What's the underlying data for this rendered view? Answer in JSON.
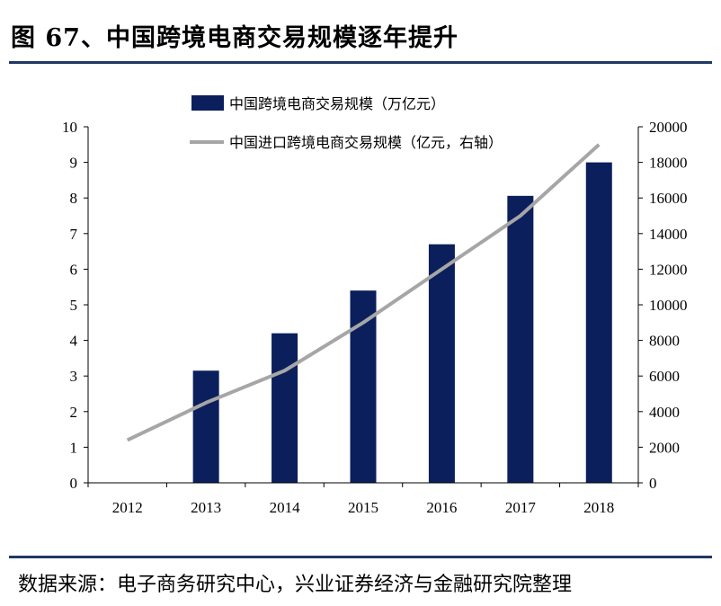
{
  "figure": {
    "title": "图 67、中国跨境电商交易规模逐年提升",
    "source": "数据来源：电子商务研究中心，兴业证券经济与金融研究院整理"
  },
  "colors": {
    "bar": "#0b1f5c",
    "line": "#a6a6a6",
    "rule": "#1f3864",
    "axis": "#000000"
  },
  "chart_data": {
    "type": "bar",
    "categories": [
      "2012",
      "2013",
      "2014",
      "2015",
      "2016",
      "2017",
      "2018"
    ],
    "series": [
      {
        "name": "中国跨境电商交易规模（万亿元）",
        "type": "bar",
        "axis": "left",
        "values": [
          null,
          3.15,
          4.2,
          5.4,
          6.7,
          8.06,
          9.0
        ]
      },
      {
        "name": "中国进口跨境电商交易规模（亿元，右轴）",
        "type": "line",
        "axis": "right",
        "values": [
          2400,
          4500,
          6300,
          9000,
          12000,
          15000,
          19000
        ]
      }
    ],
    "ylim": [
      0,
      10
    ],
    "yticks": [
      "0",
      "1",
      "2",
      "3",
      "4",
      "5",
      "6",
      "7",
      "8",
      "9",
      "10"
    ],
    "y2lim": [
      0,
      20000
    ],
    "y2ticks": [
      "0",
      "2000",
      "4000",
      "6000",
      "8000",
      "10000",
      "12000",
      "14000",
      "16000",
      "18000",
      "20000"
    ],
    "legend_position": "top-center",
    "grid": false
  }
}
